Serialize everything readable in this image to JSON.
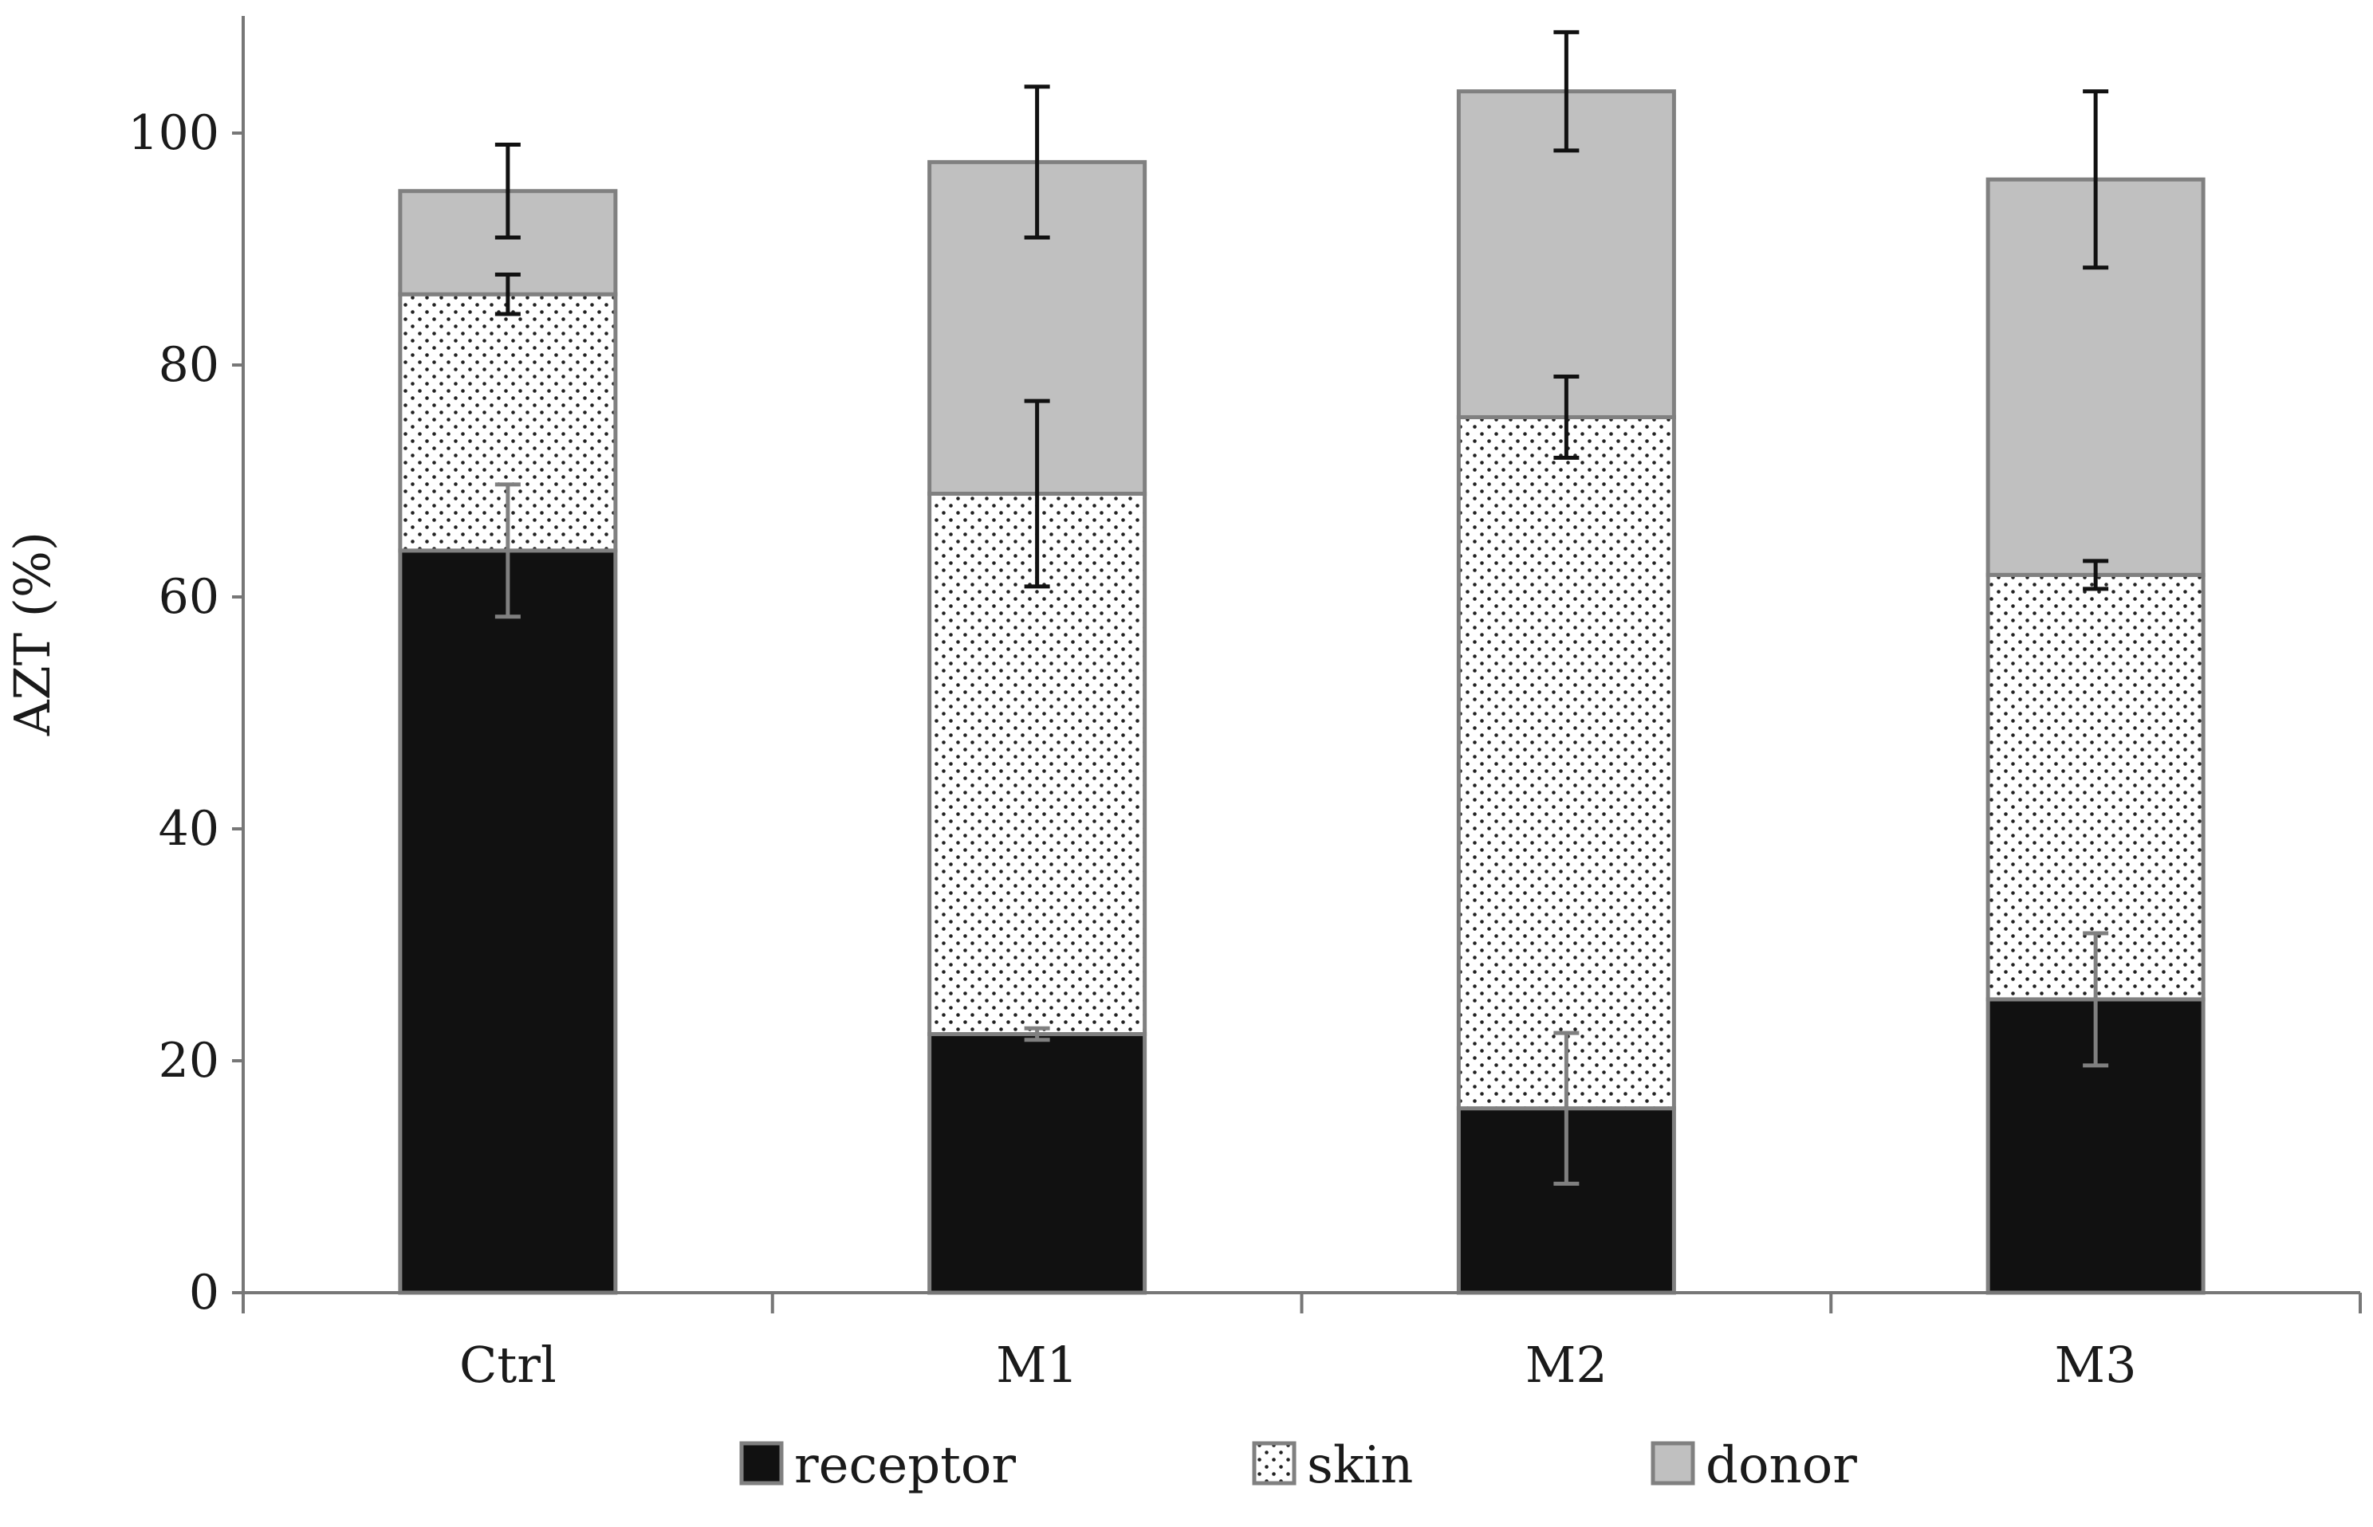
{
  "chart_data": {
    "type": "bar",
    "stacked": true,
    "title": "",
    "xlabel": "",
    "ylabel": "AZT (%)",
    "ylim": [
      0,
      110
    ],
    "yticks": [
      0,
      20,
      40,
      60,
      80,
      100
    ],
    "categories": [
      "Ctrl",
      "M1",
      "M2",
      "M3"
    ],
    "grid": false,
    "legend_position": "bottom",
    "series": [
      {
        "name": "receptor",
        "pattern": "solid",
        "fill": "#111111",
        "values": [
          64.0,
          22.3,
          15.9,
          25.3
        ],
        "errors": [
          5.7,
          0.5,
          6.5,
          5.7
        ],
        "error_color": "#808080"
      },
      {
        "name": "skin",
        "pattern": "dots",
        "fill": "#ffffff",
        "values": [
          22.1,
          46.6,
          59.6,
          36.6
        ],
        "errors": [
          1.7,
          8.0,
          3.5,
          1.2
        ],
        "error_color": "#111111"
      },
      {
        "name": "donor",
        "pattern": "solid",
        "fill": "#c0c0c0",
        "values": [
          8.9,
          28.6,
          28.1,
          34.1
        ],
        "errors": [
          4.0,
          6.5,
          5.1,
          7.6
        ],
        "error_color": "#111111"
      }
    ],
    "colors": {
      "bar_outline": "#808080",
      "axis": "#777777",
      "dot": "#222222"
    }
  }
}
